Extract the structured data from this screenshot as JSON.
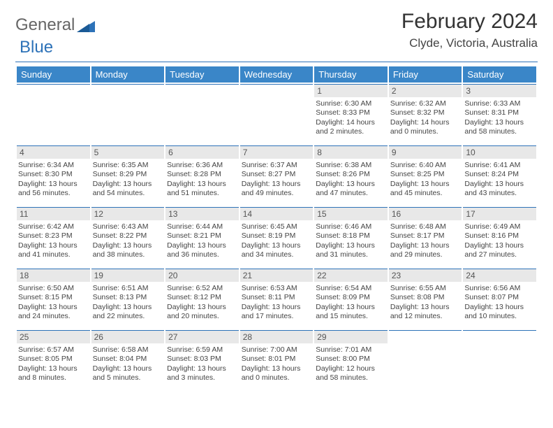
{
  "logo": {
    "part1": "General",
    "part2": "Blue"
  },
  "header": {
    "title": "February 2024",
    "location": "Clyde, Victoria, Australia"
  },
  "colors": {
    "header_bar": "#3a86c8",
    "accent_line": "#2d72b8",
    "daynum_bg": "#e8e8e8"
  },
  "calendar": {
    "day_names": [
      "Sunday",
      "Monday",
      "Tuesday",
      "Wednesday",
      "Thursday",
      "Friday",
      "Saturday"
    ],
    "lead_blanks": 4,
    "days": [
      {
        "n": "1",
        "sunrise": "Sunrise: 6:30 AM",
        "sunset": "Sunset: 8:33 PM",
        "daylight": "Daylight: 14 hours and 2 minutes."
      },
      {
        "n": "2",
        "sunrise": "Sunrise: 6:32 AM",
        "sunset": "Sunset: 8:32 PM",
        "daylight": "Daylight: 14 hours and 0 minutes."
      },
      {
        "n": "3",
        "sunrise": "Sunrise: 6:33 AM",
        "sunset": "Sunset: 8:31 PM",
        "daylight": "Daylight: 13 hours and 58 minutes."
      },
      {
        "n": "4",
        "sunrise": "Sunrise: 6:34 AM",
        "sunset": "Sunset: 8:30 PM",
        "daylight": "Daylight: 13 hours and 56 minutes."
      },
      {
        "n": "5",
        "sunrise": "Sunrise: 6:35 AM",
        "sunset": "Sunset: 8:29 PM",
        "daylight": "Daylight: 13 hours and 54 minutes."
      },
      {
        "n": "6",
        "sunrise": "Sunrise: 6:36 AM",
        "sunset": "Sunset: 8:28 PM",
        "daylight": "Daylight: 13 hours and 51 minutes."
      },
      {
        "n": "7",
        "sunrise": "Sunrise: 6:37 AM",
        "sunset": "Sunset: 8:27 PM",
        "daylight": "Daylight: 13 hours and 49 minutes."
      },
      {
        "n": "8",
        "sunrise": "Sunrise: 6:38 AM",
        "sunset": "Sunset: 8:26 PM",
        "daylight": "Daylight: 13 hours and 47 minutes."
      },
      {
        "n": "9",
        "sunrise": "Sunrise: 6:40 AM",
        "sunset": "Sunset: 8:25 PM",
        "daylight": "Daylight: 13 hours and 45 minutes."
      },
      {
        "n": "10",
        "sunrise": "Sunrise: 6:41 AM",
        "sunset": "Sunset: 8:24 PM",
        "daylight": "Daylight: 13 hours and 43 minutes."
      },
      {
        "n": "11",
        "sunrise": "Sunrise: 6:42 AM",
        "sunset": "Sunset: 8:23 PM",
        "daylight": "Daylight: 13 hours and 41 minutes."
      },
      {
        "n": "12",
        "sunrise": "Sunrise: 6:43 AM",
        "sunset": "Sunset: 8:22 PM",
        "daylight": "Daylight: 13 hours and 38 minutes."
      },
      {
        "n": "13",
        "sunrise": "Sunrise: 6:44 AM",
        "sunset": "Sunset: 8:21 PM",
        "daylight": "Daylight: 13 hours and 36 minutes."
      },
      {
        "n": "14",
        "sunrise": "Sunrise: 6:45 AM",
        "sunset": "Sunset: 8:19 PM",
        "daylight": "Daylight: 13 hours and 34 minutes."
      },
      {
        "n": "15",
        "sunrise": "Sunrise: 6:46 AM",
        "sunset": "Sunset: 8:18 PM",
        "daylight": "Daylight: 13 hours and 31 minutes."
      },
      {
        "n": "16",
        "sunrise": "Sunrise: 6:48 AM",
        "sunset": "Sunset: 8:17 PM",
        "daylight": "Daylight: 13 hours and 29 minutes."
      },
      {
        "n": "17",
        "sunrise": "Sunrise: 6:49 AM",
        "sunset": "Sunset: 8:16 PM",
        "daylight": "Daylight: 13 hours and 27 minutes."
      },
      {
        "n": "18",
        "sunrise": "Sunrise: 6:50 AM",
        "sunset": "Sunset: 8:15 PM",
        "daylight": "Daylight: 13 hours and 24 minutes."
      },
      {
        "n": "19",
        "sunrise": "Sunrise: 6:51 AM",
        "sunset": "Sunset: 8:13 PM",
        "daylight": "Daylight: 13 hours and 22 minutes."
      },
      {
        "n": "20",
        "sunrise": "Sunrise: 6:52 AM",
        "sunset": "Sunset: 8:12 PM",
        "daylight": "Daylight: 13 hours and 20 minutes."
      },
      {
        "n": "21",
        "sunrise": "Sunrise: 6:53 AM",
        "sunset": "Sunset: 8:11 PM",
        "daylight": "Daylight: 13 hours and 17 minutes."
      },
      {
        "n": "22",
        "sunrise": "Sunrise: 6:54 AM",
        "sunset": "Sunset: 8:09 PM",
        "daylight": "Daylight: 13 hours and 15 minutes."
      },
      {
        "n": "23",
        "sunrise": "Sunrise: 6:55 AM",
        "sunset": "Sunset: 8:08 PM",
        "daylight": "Daylight: 13 hours and 12 minutes."
      },
      {
        "n": "24",
        "sunrise": "Sunrise: 6:56 AM",
        "sunset": "Sunset: 8:07 PM",
        "daylight": "Daylight: 13 hours and 10 minutes."
      },
      {
        "n": "25",
        "sunrise": "Sunrise: 6:57 AM",
        "sunset": "Sunset: 8:05 PM",
        "daylight": "Daylight: 13 hours and 8 minutes."
      },
      {
        "n": "26",
        "sunrise": "Sunrise: 6:58 AM",
        "sunset": "Sunset: 8:04 PM",
        "daylight": "Daylight: 13 hours and 5 minutes."
      },
      {
        "n": "27",
        "sunrise": "Sunrise: 6:59 AM",
        "sunset": "Sunset: 8:03 PM",
        "daylight": "Daylight: 13 hours and 3 minutes."
      },
      {
        "n": "28",
        "sunrise": "Sunrise: 7:00 AM",
        "sunset": "Sunset: 8:01 PM",
        "daylight": "Daylight: 13 hours and 0 minutes."
      },
      {
        "n": "29",
        "sunrise": "Sunrise: 7:01 AM",
        "sunset": "Sunset: 8:00 PM",
        "daylight": "Daylight: 12 hours and 58 minutes."
      }
    ]
  }
}
